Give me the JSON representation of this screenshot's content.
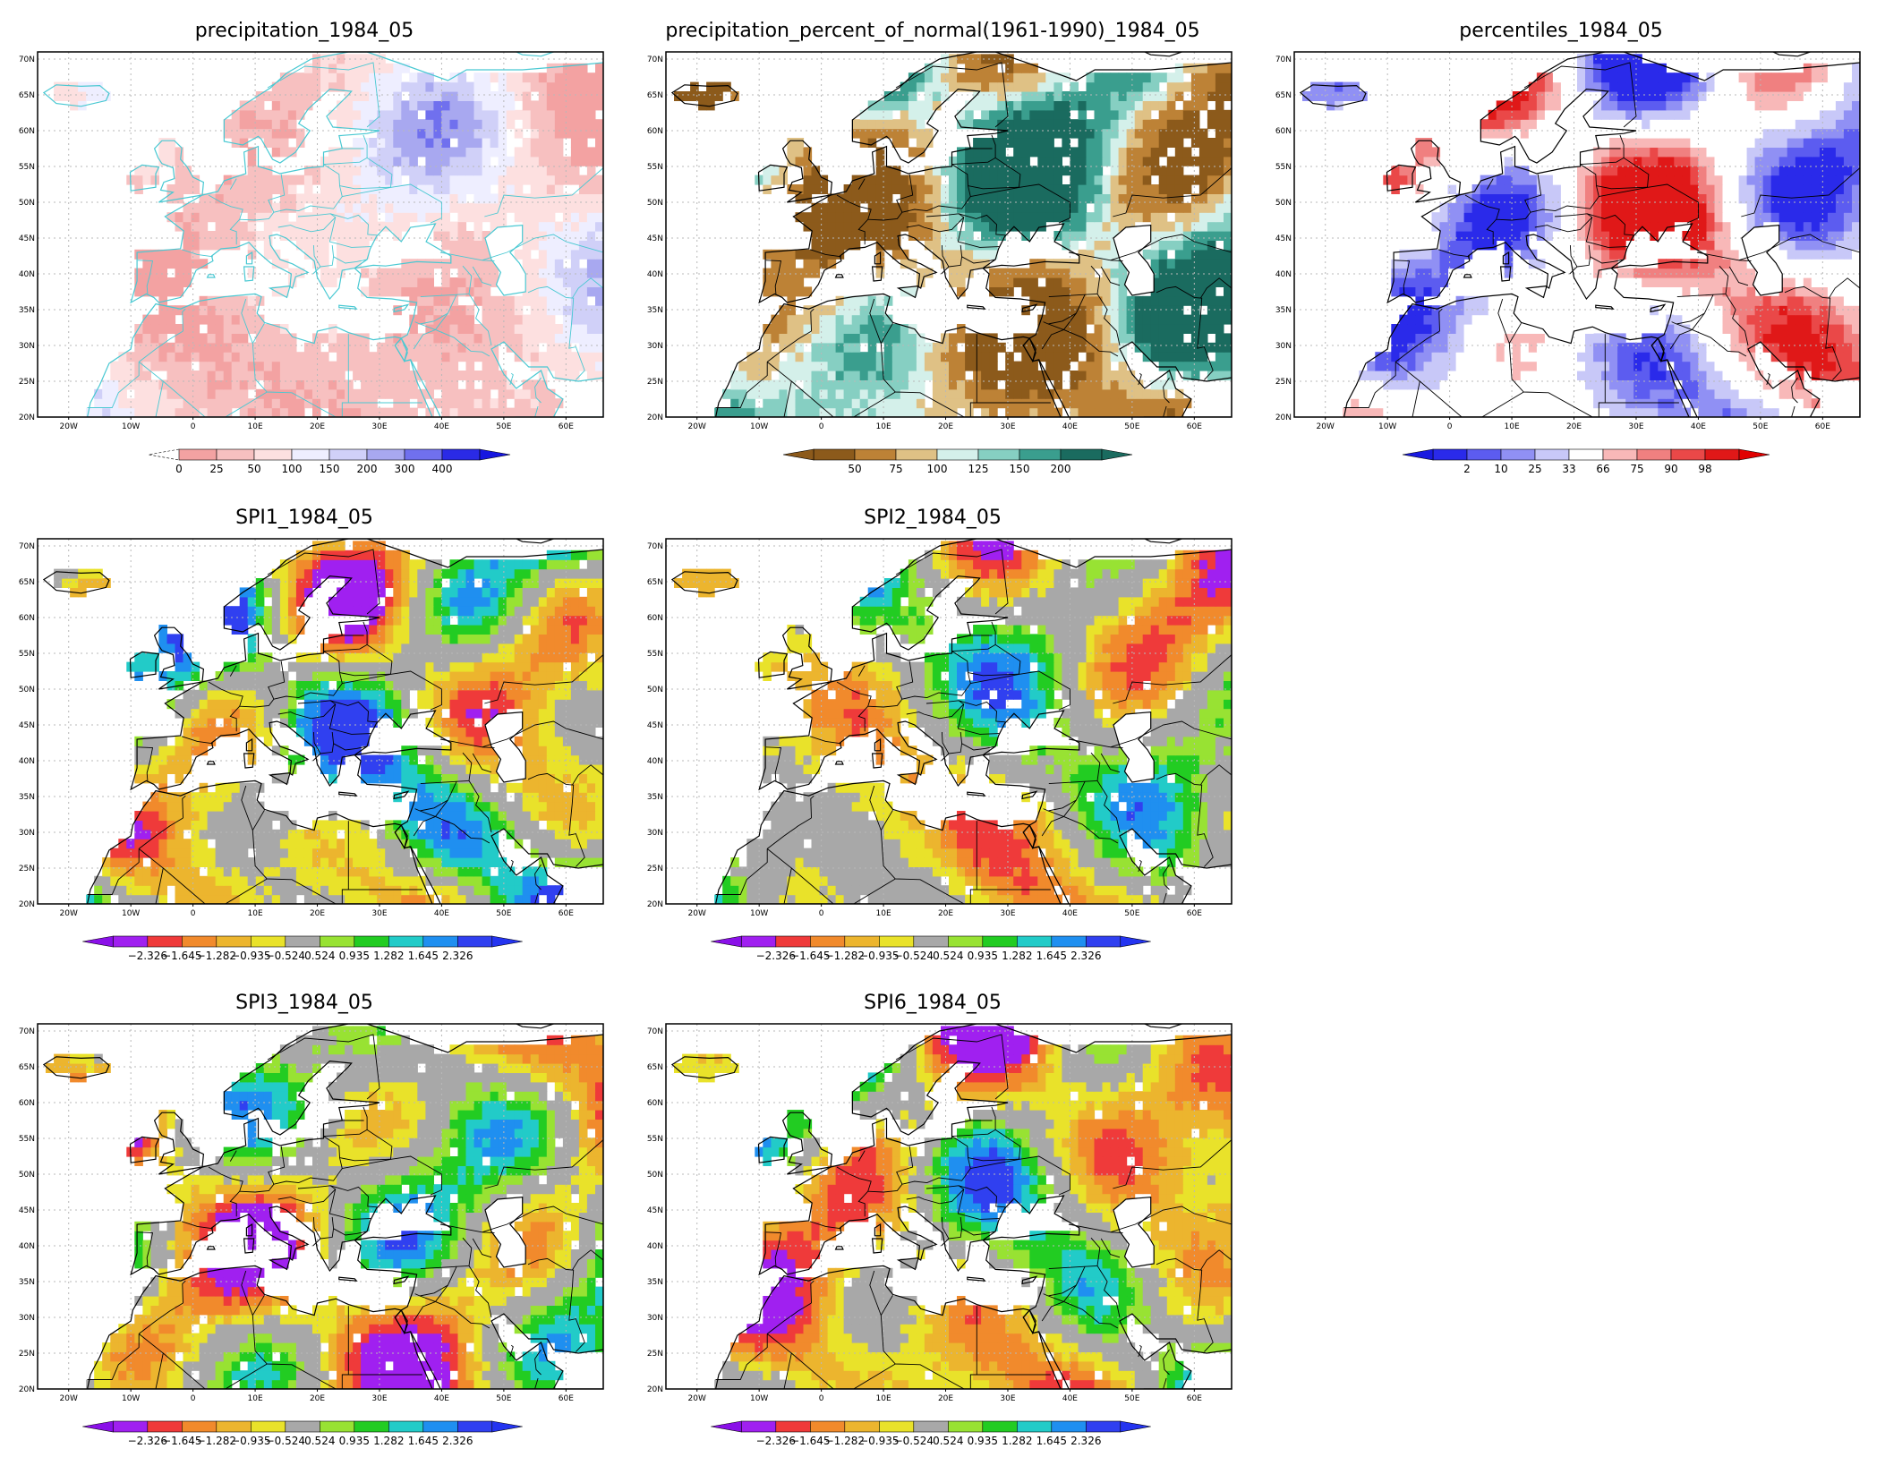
{
  "x_ticks": [
    "20W",
    "10W",
    "0",
    "10E",
    "20E",
    "30E",
    "40E",
    "50E",
    "60E"
  ],
  "y_ticks": [
    "70N",
    "65N",
    "60N",
    "55N",
    "50N",
    "45N",
    "40N",
    "35N",
    "30N",
    "25N",
    "20N"
  ],
  "panels": [
    {
      "title": "precipitation_1984_05",
      "scheme": "precip",
      "colorbar": {
        "labels": [
          "0",
          "25",
          "50",
          "100",
          "150",
          "200",
          "300",
          "400"
        ],
        "colors": [
          "#f3a2a2",
          "#f7c0c0",
          "#fde0e0",
          "#eeeeff",
          "#d0d0f8",
          "#a8a8f0",
          "#7070ee",
          "#2a2ae6"
        ],
        "left_arrow": false,
        "right_arrow": true,
        "arrow_right_color": "#1616e0"
      }
    },
    {
      "title": "precipitation_percent_of_normal(1961-1990)_1984_05",
      "scheme": "pct",
      "colorbar": {
        "labels": [
          "50",
          "75",
          "100",
          "125",
          "150",
          "200"
        ],
        "colors": [
          "#8c5a1b",
          "#bd8236",
          "#dfc185",
          "#d4f0ea",
          "#86cfc2",
          "#3a9e8e",
          "#1a6b5f"
        ],
        "left_arrow": true,
        "right_arrow": true,
        "arrow_left_color": "#8c5a1b",
        "arrow_right_color": "#1a6b5f"
      }
    },
    {
      "title": "percentiles_1984_05",
      "scheme": "perc",
      "colorbar": {
        "labels": [
          "2",
          "10",
          "25",
          "33",
          "66",
          "75",
          "90",
          "98"
        ],
        "colors": [
          "#2a2aea",
          "#5c5cf0",
          "#9090f4",
          "#c8c8f8",
          "#ffffff",
          "#f8b8b8",
          "#f08080",
          "#ea4848",
          "#e01818"
        ],
        "left_arrow": true,
        "right_arrow": true,
        "arrow_left_color": "#1a1ae0",
        "arrow_right_color": "#e00000"
      }
    },
    {
      "title": "SPI1_1984_05",
      "scheme": "spi1",
      "colorbar": {
        "labels": [
          "-2.326",
          "-1.645",
          "-1.282",
          "-0.935",
          "-0.524",
          "0.524",
          "0.935",
          "1.282",
          "1.645",
          "2.326"
        ],
        "colors": [
          "#a020f0",
          "#ef3a3a",
          "#f18a2c",
          "#ecb52e",
          "#e9e22a",
          "#a8a8a8",
          "#98e233",
          "#22cc22",
          "#22cbc8",
          "#1f8ff0",
          "#3040f0"
        ],
        "left_arrow": true,
        "right_arrow": true,
        "arrow_left_color": "#8a10e8",
        "arrow_right_color": "#2434f0"
      }
    },
    {
      "title": "SPI2_1984_05",
      "scheme": "spi2",
      "colorbar": {
        "labels": [
          "-2.326",
          "-1.645",
          "-1.282",
          "-0.935",
          "-0.524",
          "0.524",
          "0.935",
          "1.282",
          "1.645",
          "2.326"
        ],
        "colors": [
          "#a020f0",
          "#ef3a3a",
          "#f18a2c",
          "#ecb52e",
          "#e9e22a",
          "#a8a8a8",
          "#98e233",
          "#22cc22",
          "#22cbc8",
          "#1f8ff0",
          "#3040f0"
        ],
        "left_arrow": true,
        "right_arrow": true,
        "arrow_left_color": "#8a10e8",
        "arrow_right_color": "#2434f0"
      }
    },
    {
      "title": "SPI3_1984_05",
      "scheme": "spi3",
      "colorbar": {
        "labels": [
          "-2.326",
          "-1.645",
          "-1.282",
          "-0.935",
          "-0.524",
          "0.524",
          "0.935",
          "1.282",
          "1.645",
          "2.326"
        ],
        "colors": [
          "#a020f0",
          "#ef3a3a",
          "#f18a2c",
          "#ecb52e",
          "#e9e22a",
          "#a8a8a8",
          "#98e233",
          "#22cc22",
          "#22cbc8",
          "#1f8ff0",
          "#3040f0"
        ],
        "left_arrow": true,
        "right_arrow": true,
        "arrow_left_color": "#8a10e8",
        "arrow_right_color": "#2434f0"
      }
    },
    {
      "title": "SPI6_1984_05",
      "scheme": "spi6",
      "colorbar": {
        "labels": [
          "-2.326",
          "-1.645",
          "-1.282",
          "-0.935",
          "-0.524",
          "0.524",
          "0.935",
          "1.282",
          "1.645",
          "2.326"
        ],
        "colors": [
          "#a020f0",
          "#ef3a3a",
          "#f18a2c",
          "#ecb52e",
          "#e9e22a",
          "#a8a8a8",
          "#98e233",
          "#22cc22",
          "#22cbc8",
          "#1f8ff0",
          "#3040f0"
        ],
        "left_arrow": true,
        "right_arrow": true,
        "arrow_left_color": "#8a10e8",
        "arrow_right_color": "#2434f0"
      }
    }
  ]
}
